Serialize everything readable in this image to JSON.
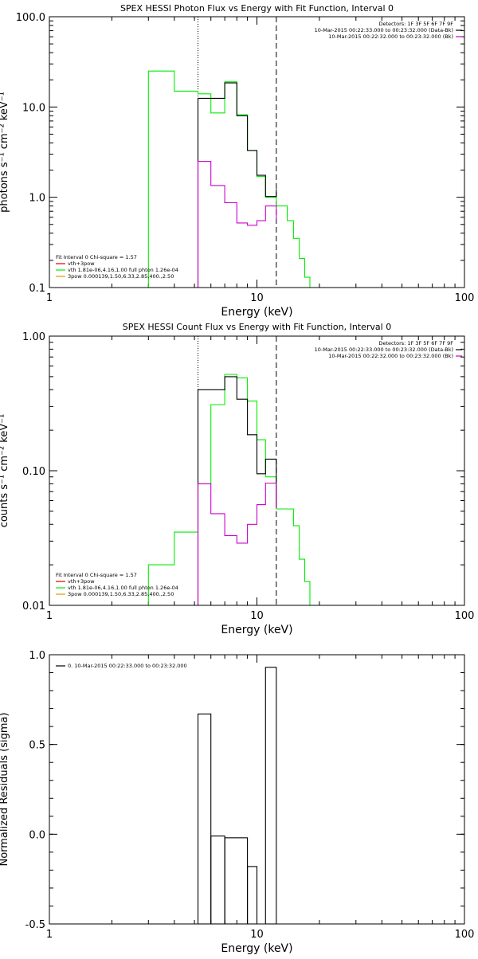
{
  "colors": {
    "total": "#000000",
    "green": "#00ee00",
    "magenta": "#cc00cc",
    "orange": "#e69a00",
    "red": "#e00000"
  },
  "chart_data": [
    {
      "type": "line",
      "title": "SPEX HESSI Photon Flux vs Energy with Fit Function, Interval 0",
      "xlabel": "Energy (keV)",
      "ylabel": "photons s⁻¹ cm⁻² keV⁻¹",
      "xscale": "log",
      "yscale": "log",
      "xlim": [
        1,
        100
      ],
      "ylim": [
        0.1,
        100
      ],
      "xticks": [
        {
          "v": 1,
          "label": "1"
        },
        {
          "v": 10,
          "label": "10"
        },
        {
          "v": 100,
          "label": "100"
        }
      ],
      "yticks": [
        {
          "v": 0.1,
          "label": "0.1"
        },
        {
          "v": 1,
          "label": "1.0"
        },
        {
          "v": 10,
          "label": "10.0"
        },
        {
          "v": 100,
          "label": "100.0"
        }
      ],
      "vlines": [
        {
          "x": 5.2,
          "style": "dotted"
        },
        {
          "x": 5.2,
          "style": "solid",
          "color": "magenta"
        },
        {
          "x": 12.4,
          "style": "dashed"
        }
      ],
      "info": [
        "Detectors: 1F 3F 5F 6F 7F 9F",
        "10-Mar-2015 00:22:33.000 to 00:23:32.000 (Data-Bk)",
        "10-Mar-2015 00:22:32.000 to 00:23:32.000 (Bk)"
      ],
      "info_swatch": [
        null,
        "black",
        "magenta"
      ],
      "legend": [
        {
          "text": "Fit Interval 0   Chi-square = 1.57",
          "color": null
        },
        {
          "text": "vth+3pow",
          "color": "red"
        },
        {
          "text": "vth 1.81e-06,4.16,1.00  full phton 1.26e-04",
          "color": "green"
        },
        {
          "text": "3pow 0.000139,1.50,6.33,2.85,400.,2.50",
          "color": "orange"
        }
      ],
      "series": [
        {
          "name": "vth 1.81e-06,4.16,1.00  full phton 1.26e-04",
          "color": "green",
          "edges": [
            3,
            4,
            5.2,
            6,
            7,
            8,
            9,
            10,
            11,
            12.4,
            14,
            15,
            16,
            17,
            18
          ],
          "values": [
            25,
            15,
            14,
            8.6,
            19,
            8.2,
            3.3,
            1.7,
            1.0,
            0.8,
            0.55,
            0.35,
            0.21,
            0.13
          ]
        },
        {
          "name": "vth+3pow",
          "color": "black",
          "edges": [
            5.2,
            6,
            7,
            8,
            9,
            10,
            11,
            12.4
          ],
          "values": [
            12.5,
            12.5,
            18.5,
            8.0,
            3.3,
            1.75,
            1.02,
            1.23
          ]
        },
        {
          "name": "3pow 0.000139,1.50,6.33,2.85,400.,2.50",
          "color": "magenta",
          "edges": [
            5.2,
            6,
            7,
            8,
            9,
            10,
            11,
            12.4
          ],
          "values": [
            2.5,
            1.35,
            0.87,
            0.52,
            0.49,
            0.55,
            0.8,
            0.56
          ]
        }
      ]
    },
    {
      "type": "line",
      "title": "SPEX HESSI Count Flux vs Energy with Fit Function, Interval 0",
      "xlabel": "Energy (keV)",
      "ylabel": "counts s⁻¹ cm⁻² keV⁻¹",
      "xscale": "log",
      "yscale": "log",
      "xlim": [
        1,
        100
      ],
      "ylim": [
        0.01,
        1
      ],
      "xticks": [
        {
          "v": 1,
          "label": "1"
        },
        {
          "v": 10,
          "label": "10"
        },
        {
          "v": 100,
          "label": "100"
        }
      ],
      "yticks": [
        {
          "v": 0.01,
          "label": "0.01"
        },
        {
          "v": 0.1,
          "label": "0.10"
        },
        {
          "v": 1,
          "label": "1.00"
        }
      ],
      "vlines": [
        {
          "x": 5.2,
          "style": "dotted"
        },
        {
          "x": 5.2,
          "style": "solid",
          "color": "magenta"
        },
        {
          "x": 12.4,
          "style": "dashed"
        }
      ],
      "info": [
        "Detectors: 1F 3F 5F 6F 7F 9F",
        "10-Mar-2015 00:22:33.000 to 00:23:32.000 (Data-Bk)",
        "10-Mar-2015 00:22:32.000 to 00:23:32.000 (Bk)"
      ],
      "info_swatch": [
        null,
        "black",
        "magenta"
      ],
      "legend": [
        {
          "text": "Fit Interval 0   Chi-square = 1.57",
          "color": null
        },
        {
          "text": "vth+3pow",
          "color": "red"
        },
        {
          "text": "vth 1.81e-06,4.16,1.00  full phton 1.26e-04",
          "color": "green"
        },
        {
          "text": "3pow 0.000139,1.50,6.33,2.85,400.,2.50",
          "color": "orange"
        }
      ],
      "series": [
        {
          "name": "vth 1.81e-06,4.16,1.00  full phton 1.26e-04",
          "color": "green",
          "edges": [
            3,
            4,
            5.2,
            6,
            7,
            8,
            9,
            10,
            11,
            12.4,
            14,
            15,
            16,
            17,
            18
          ],
          "values": [
            0.02,
            0.035,
            0.08,
            0.31,
            0.52,
            0.49,
            0.33,
            0.17,
            0.09,
            0.052,
            0.052,
            0.039,
            0.022,
            0.015
          ]
        },
        {
          "name": "vth+3pow",
          "color": "black",
          "edges": [
            5.2,
            6,
            7,
            8,
            9,
            10,
            11,
            12.4
          ],
          "values": [
            0.4,
            0.4,
            0.5,
            0.34,
            0.185,
            0.095,
            0.122,
            0.053
          ]
        },
        {
          "name": "3pow 0.000139,1.50,6.33,2.85,400.,2.50",
          "color": "magenta",
          "edges": [
            5.2,
            6,
            7,
            8,
            9,
            10,
            11,
            12.4
          ],
          "values": [
            0.08,
            0.048,
            0.033,
            0.029,
            0.04,
            0.056,
            0.081,
            0.053
          ]
        }
      ]
    },
    {
      "type": "line",
      "title": "",
      "xlabel": "Energy (keV)",
      "ylabel": "Normalized Residuals (sigma)",
      "xscale": "log",
      "yscale": "linear",
      "xlim": [
        1,
        100
      ],
      "ylim": [
        -0.5,
        1.0
      ],
      "xticks": [
        {
          "v": 1,
          "label": "1"
        },
        {
          "v": 10,
          "label": "10"
        },
        {
          "v": 100,
          "label": "100"
        }
      ],
      "yticks": [
        {
          "v": -0.5,
          "label": "-0.5"
        },
        {
          "v": 0,
          "label": "0.0"
        },
        {
          "v": 0.5,
          "label": "0.5"
        },
        {
          "v": 1,
          "label": "1.0"
        }
      ],
      "legend": [
        {
          "text": "0. 10-Mar-2015 00:22:33.000 to 00:23:32.000",
          "color": "black"
        }
      ],
      "series": [
        {
          "name": "0. 10-Mar-2015 00:22:33.000 to 00:23:32.000",
          "color": "black",
          "steps": [
            [
              5.2,
              6.0,
              0.67
            ],
            [
              6.0,
              7.0,
              -0.01
            ],
            [
              7.0,
              9.0,
              -0.02
            ],
            [
              9.0,
              10.0,
              -0.18
            ],
            [
              10.0,
              11.0,
              -0.5
            ],
            [
              11.0,
              12.4,
              0.93
            ]
          ]
        }
      ]
    }
  ]
}
